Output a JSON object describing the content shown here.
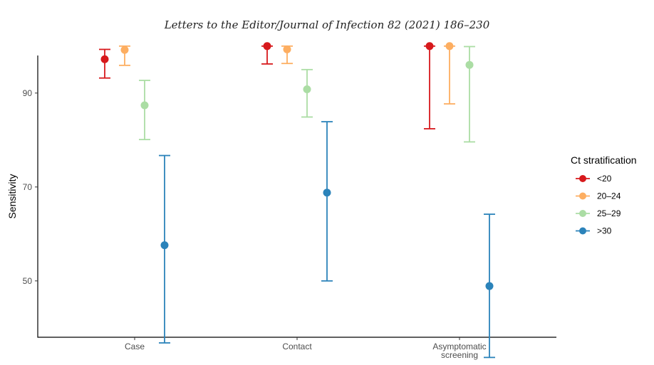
{
  "header": {
    "text": "Letters to the Editor/Journal of Infection 82 (2021) 186–230"
  },
  "chart_data": {
    "type": "scatter",
    "subtype": "point-range",
    "ylabel": "Sensitivity",
    "xlabel": "",
    "ylim": [
      38,
      98
    ],
    "yticks": [
      50,
      70,
      90
    ],
    "grid": false,
    "categories": [
      {
        "key": "case",
        "lines": [
          "Case"
        ]
      },
      {
        "key": "contact",
        "lines": [
          "Contact"
        ]
      },
      {
        "key": "asymptomatic",
        "lines": [
          "Asymptomatic",
          "screening"
        ]
      }
    ],
    "legend": {
      "title": "Ct stratification",
      "position": "right"
    },
    "series": [
      {
        "name": "<20",
        "color": "#d7191c",
        "points": [
          {
            "category": "case",
            "value": 97.2,
            "low": 93.2,
            "high": 99.3
          },
          {
            "category": "contact",
            "value": 100,
            "low": 96.2,
            "high": 100
          },
          {
            "category": "asymptomatic",
            "value": 100,
            "low": 82.4,
            "high": 100
          }
        ]
      },
      {
        "name": "20–24",
        "color": "#fdae61",
        "points": [
          {
            "category": "case",
            "value": 99.2,
            "low": 95.9,
            "high": 100
          },
          {
            "category": "contact",
            "value": 99.3,
            "low": 96.3,
            "high": 100
          },
          {
            "category": "asymptomatic",
            "value": 100,
            "low": 87.7,
            "high": 100
          }
        ]
      },
      {
        "name": "25–29",
        "color": "#abdda4",
        "points": [
          {
            "category": "case",
            "value": 87.4,
            "low": 80.1,
            "high": 92.7
          },
          {
            "category": "contact",
            "value": 90.8,
            "low": 84.9,
            "high": 95.0
          },
          {
            "category": "asymptomatic",
            "value": 96.0,
            "low": 79.6,
            "high": 99.9
          }
        ]
      },
      {
        "name": ">30",
        "color": "#2b83ba",
        "points": [
          {
            "category": "case",
            "value": 57.6,
            "low": 36.8,
            "high": 76.7
          },
          {
            "category": "contact",
            "value": 68.8,
            "low": 50.0,
            "high": 83.9
          },
          {
            "category": "asymptomatic",
            "value": 48.9,
            "low": 33.7,
            "high": 64.2
          }
        ]
      }
    ]
  }
}
